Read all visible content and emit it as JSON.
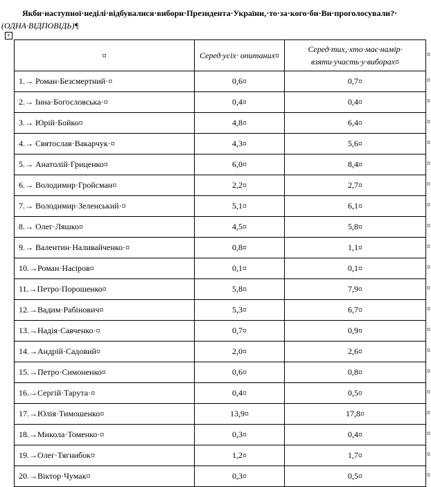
{
  "header": {
    "title": "Якби·наступної·неділі·відбувалися·вибори·Президента·України,·то·за·кого·би·Ви·проголосували?·",
    "note": "(ОДНА·ВІДПОВІДЬ)¶"
  },
  "table": {
    "columns": [
      "¤",
      "Серед·усіх· опитаних¤",
      "Серед·тих,·хто·має·намір· взяти·участь·у·виборах¤"
    ],
    "row_end_mark": "¤",
    "rows": [
      [
        "1.→ Роман·Безсмертний·¤",
        "0,6¤",
        "0,7¤"
      ],
      [
        "2.→ Інна·Богословська·¤",
        "0,4¤",
        "0,4¤"
      ],
      [
        "3.→ Юрій·Бойко¤",
        "4,8¤",
        "6,4¤"
      ],
      [
        "4.→ Святослав·Вакарчук·¤",
        "4,3¤",
        "5,6¤"
      ],
      [
        "5.→ Анатолій·Гриценко¤",
        "6,0¤",
        "8,4¤"
      ],
      [
        "6.→ Володимир·Гройсман¤",
        "2,2¤",
        "2,7¤"
      ],
      [
        "7.→ Володимир·Зеленський·¤",
        "5,1¤",
        "6,1¤"
      ],
      [
        "8.→ Олег·Ляшко¤",
        "4,5¤",
        "5,8¤"
      ],
      [
        "9.→ Валентин·Наливайченко·¤",
        "0,8¤",
        "1,1¤"
      ],
      [
        "10.→Роман·Насіров¤",
        "0,1¤",
        "0,1¤"
      ],
      [
        "11.→Петро·Порошенко¤",
        "5,8¤",
        "7,9¤"
      ],
      [
        "12.→Вадим·Рабінович¤",
        "5,3¤",
        "6,7¤"
      ],
      [
        "13.→Надія·Савченко·¤",
        "0,7¤",
        "0,9¤"
      ],
      [
        "14.→Андрій·Садовий¤",
        "2,0¤",
        "2,6¤"
      ],
      [
        "15.→Петро·Симоненко¤",
        "0,6¤",
        "0,8¤"
      ],
      [
        "16.→Сергій·Тарута·¤",
        "0,4¤",
        "0,5¤"
      ],
      [
        "17.→Юлія·Тимошенко¤",
        "13,9¤",
        "17,8¤"
      ],
      [
        "18.→Микола·Томенко·¤",
        "0,3¤",
        "0,4¤"
      ],
      [
        "19.→Олег·Тягнибок¤",
        "1,2¤",
        "1,7¤"
      ],
      [
        "20.→Віктор·Чумак¤",
        "0,3¤",
        "0,5¤"
      ]
    ]
  }
}
